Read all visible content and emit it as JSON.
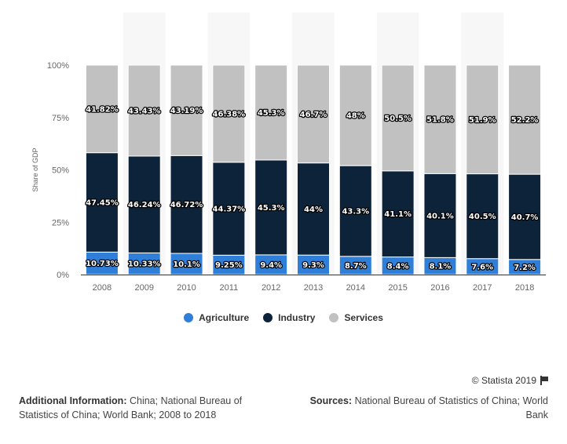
{
  "chart_data": {
    "type": "bar",
    "stacked": true,
    "categories": [
      "2008",
      "2009",
      "2010",
      "2011",
      "2012",
      "2013",
      "2014",
      "2015",
      "2016",
      "2017",
      "2018"
    ],
    "series": [
      {
        "name": "Agriculture",
        "color": "#2f7ed8",
        "values": [
          10.73,
          10.33,
          10.1,
          9.25,
          9.4,
          9.3,
          8.7,
          8.4,
          8.1,
          7.6,
          7.2
        ],
        "labels": [
          "10.73%",
          "10.33%",
          "10.1%",
          "9.25%",
          "9.4%",
          "9.3%",
          "8.7%",
          "8.4%",
          "8.1%",
          "7.6%",
          "7.2%"
        ]
      },
      {
        "name": "Industry",
        "color": "#0d233a",
        "values": [
          47.45,
          46.24,
          46.72,
          44.37,
          45.3,
          44,
          43.3,
          41.1,
          40.1,
          40.5,
          40.7
        ],
        "labels": [
          "47.45%",
          "46.24%",
          "46.72%",
          "44.37%",
          "45.3%",
          "44%",
          "43.3%",
          "41.1%",
          "40.1%",
          "40.5%",
          "40.7%"
        ]
      },
      {
        "name": "Services",
        "color": "#c1c1c1",
        "values": [
          41.82,
          43.43,
          43.19,
          46.38,
          45.3,
          46.7,
          48,
          50.5,
          51.8,
          51.9,
          52.2
        ],
        "labels": [
          "41.82%",
          "43.43%",
          "43.19%",
          "46.38%",
          "45.3%",
          "46.7%",
          "48%",
          "50.5%",
          "51.8%",
          "51.9%",
          "52.2%"
        ]
      }
    ],
    "ylabel": "Share of GDP",
    "xlabel": "",
    "ylim": [
      0,
      100
    ],
    "yticks": [
      0,
      25,
      50,
      75,
      100
    ],
    "ytick_labels": [
      "0%",
      "25%",
      "50%",
      "75%",
      "100%"
    ],
    "grid": false,
    "legend_position": "bottom-center",
    "alternate_band_color": "#f7f7f7"
  },
  "legend": [
    {
      "label": "Agriculture",
      "color": "#2f7ed8"
    },
    {
      "label": "Industry",
      "color": "#0d233a"
    },
    {
      "label": "Services",
      "color": "#c1c1c1"
    }
  ],
  "credit": "© Statista 2019",
  "additional_info": {
    "label": "Additional Information:",
    "text": "China; National Bureau of Statistics of China; World Bank; 2008 to 2018"
  },
  "sources": {
    "label": "Sources:",
    "text": "National Bureau of Statistics of China; World Bank"
  }
}
